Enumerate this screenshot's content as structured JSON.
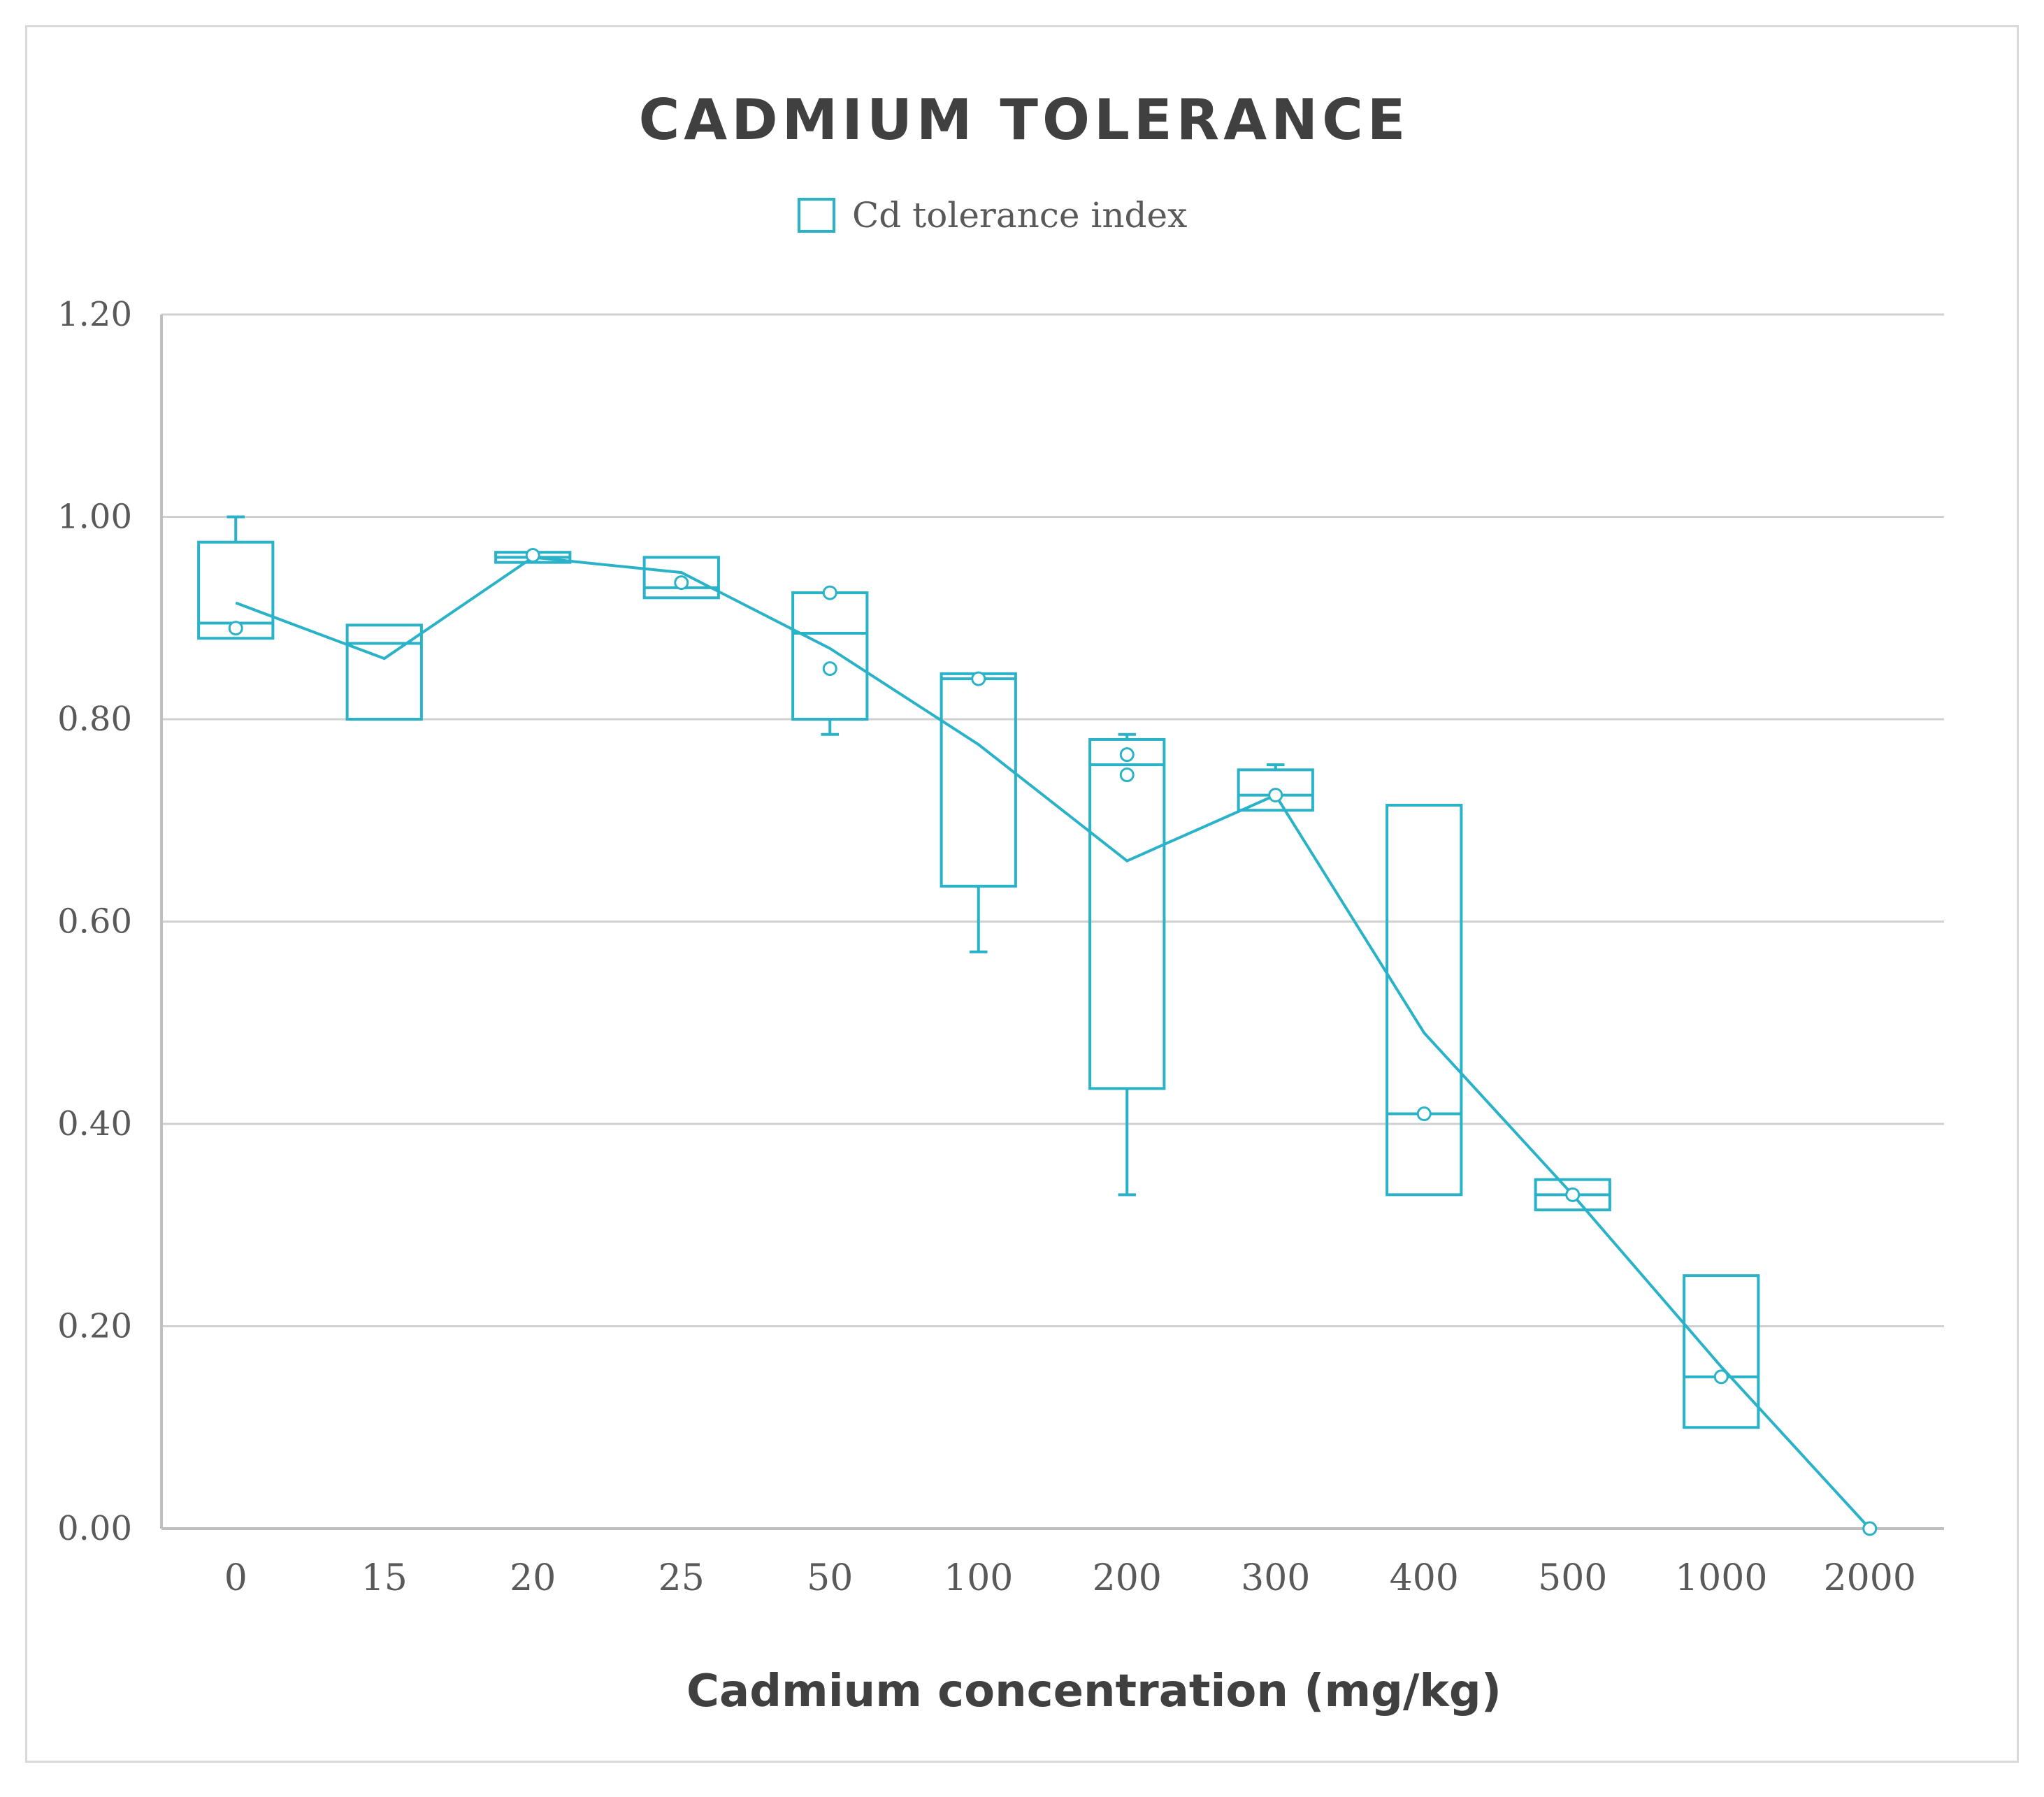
{
  "chart_data": {
    "type": "box",
    "title": "CADMIUM TOLERANCE",
    "legend": {
      "label": "Cd tolerance index",
      "placement": "top"
    },
    "xlabel": "Cadmium concentration (mg/kg)",
    "ylabel": "",
    "ylim": [
      0,
      1.2
    ],
    "yticks": [
      "0.00",
      "0.20",
      "0.40",
      "0.60",
      "0.80",
      "1.00",
      "1.20"
    ],
    "gridlines": true,
    "color": "#29b2c8",
    "categories": [
      "0",
      "15",
      "20",
      "25",
      "50",
      "100",
      "200",
      "300",
      "400",
      "500",
      "1000",
      "2000"
    ],
    "boxes": [
      {
        "category": "0",
        "whisker_low": 0.88,
        "q1": 0.88,
        "median": 0.895,
        "q3": 0.975,
        "whisker_high": 1.0,
        "mean": 0.915,
        "outliers": [
          0.89
        ]
      },
      {
        "category": "15",
        "whisker_low": 0.8,
        "q1": 0.8,
        "median": 0.875,
        "q3": 0.893,
        "whisker_high": 0.893,
        "mean": 0.86,
        "outliers": []
      },
      {
        "category": "20",
        "whisker_low": 0.955,
        "q1": 0.955,
        "median": 0.96,
        "q3": 0.965,
        "whisker_high": 0.965,
        "mean": 0.96,
        "outliers": [
          0.962
        ]
      },
      {
        "category": "25",
        "whisker_low": 0.92,
        "q1": 0.92,
        "median": 0.93,
        "q3": 0.96,
        "whisker_high": 0.96,
        "mean": 0.945,
        "outliers": [
          0.935
        ]
      },
      {
        "category": "50",
        "whisker_low": 0.785,
        "q1": 0.8,
        "median": 0.885,
        "q3": 0.925,
        "whisker_high": 0.925,
        "mean": 0.87,
        "outliers": [
          0.925,
          0.85
        ]
      },
      {
        "category": "100",
        "whisker_low": 0.57,
        "q1": 0.635,
        "median": 0.84,
        "q3": 0.845,
        "whisker_high": 0.845,
        "mean": 0.775,
        "outliers": [
          0.84
        ]
      },
      {
        "category": "200",
        "whisker_low": 0.33,
        "q1": 0.435,
        "median": 0.755,
        "q3": 0.78,
        "whisker_high": 0.785,
        "mean": 0.66,
        "outliers": [
          0.765,
          0.745
        ]
      },
      {
        "category": "300",
        "whisker_low": 0.71,
        "q1": 0.71,
        "median": 0.725,
        "q3": 0.75,
        "whisker_high": 0.755,
        "mean": 0.725,
        "outliers": [
          0.725
        ]
      },
      {
        "category": "400",
        "whisker_low": 0.33,
        "q1": 0.33,
        "median": 0.41,
        "q3": 0.715,
        "whisker_high": 0.715,
        "mean": 0.49,
        "outliers": [
          0.41
        ]
      },
      {
        "category": "500",
        "whisker_low": 0.315,
        "q1": 0.315,
        "median": 0.33,
        "q3": 0.345,
        "whisker_high": 0.345,
        "mean": 0.33,
        "outliers": [
          0.33
        ]
      },
      {
        "category": "1000",
        "whisker_low": 0.1,
        "q1": 0.1,
        "median": 0.15,
        "q3": 0.25,
        "whisker_high": 0.25,
        "mean": 0.16,
        "outliers": [
          0.15
        ]
      },
      {
        "category": "2000",
        "whisker_low": 0.0,
        "q1": 0.0,
        "median": 0.0,
        "q3": 0.0,
        "whisker_high": 0.0,
        "mean": 0.0,
        "outliers": [
          0.0
        ]
      }
    ]
  }
}
